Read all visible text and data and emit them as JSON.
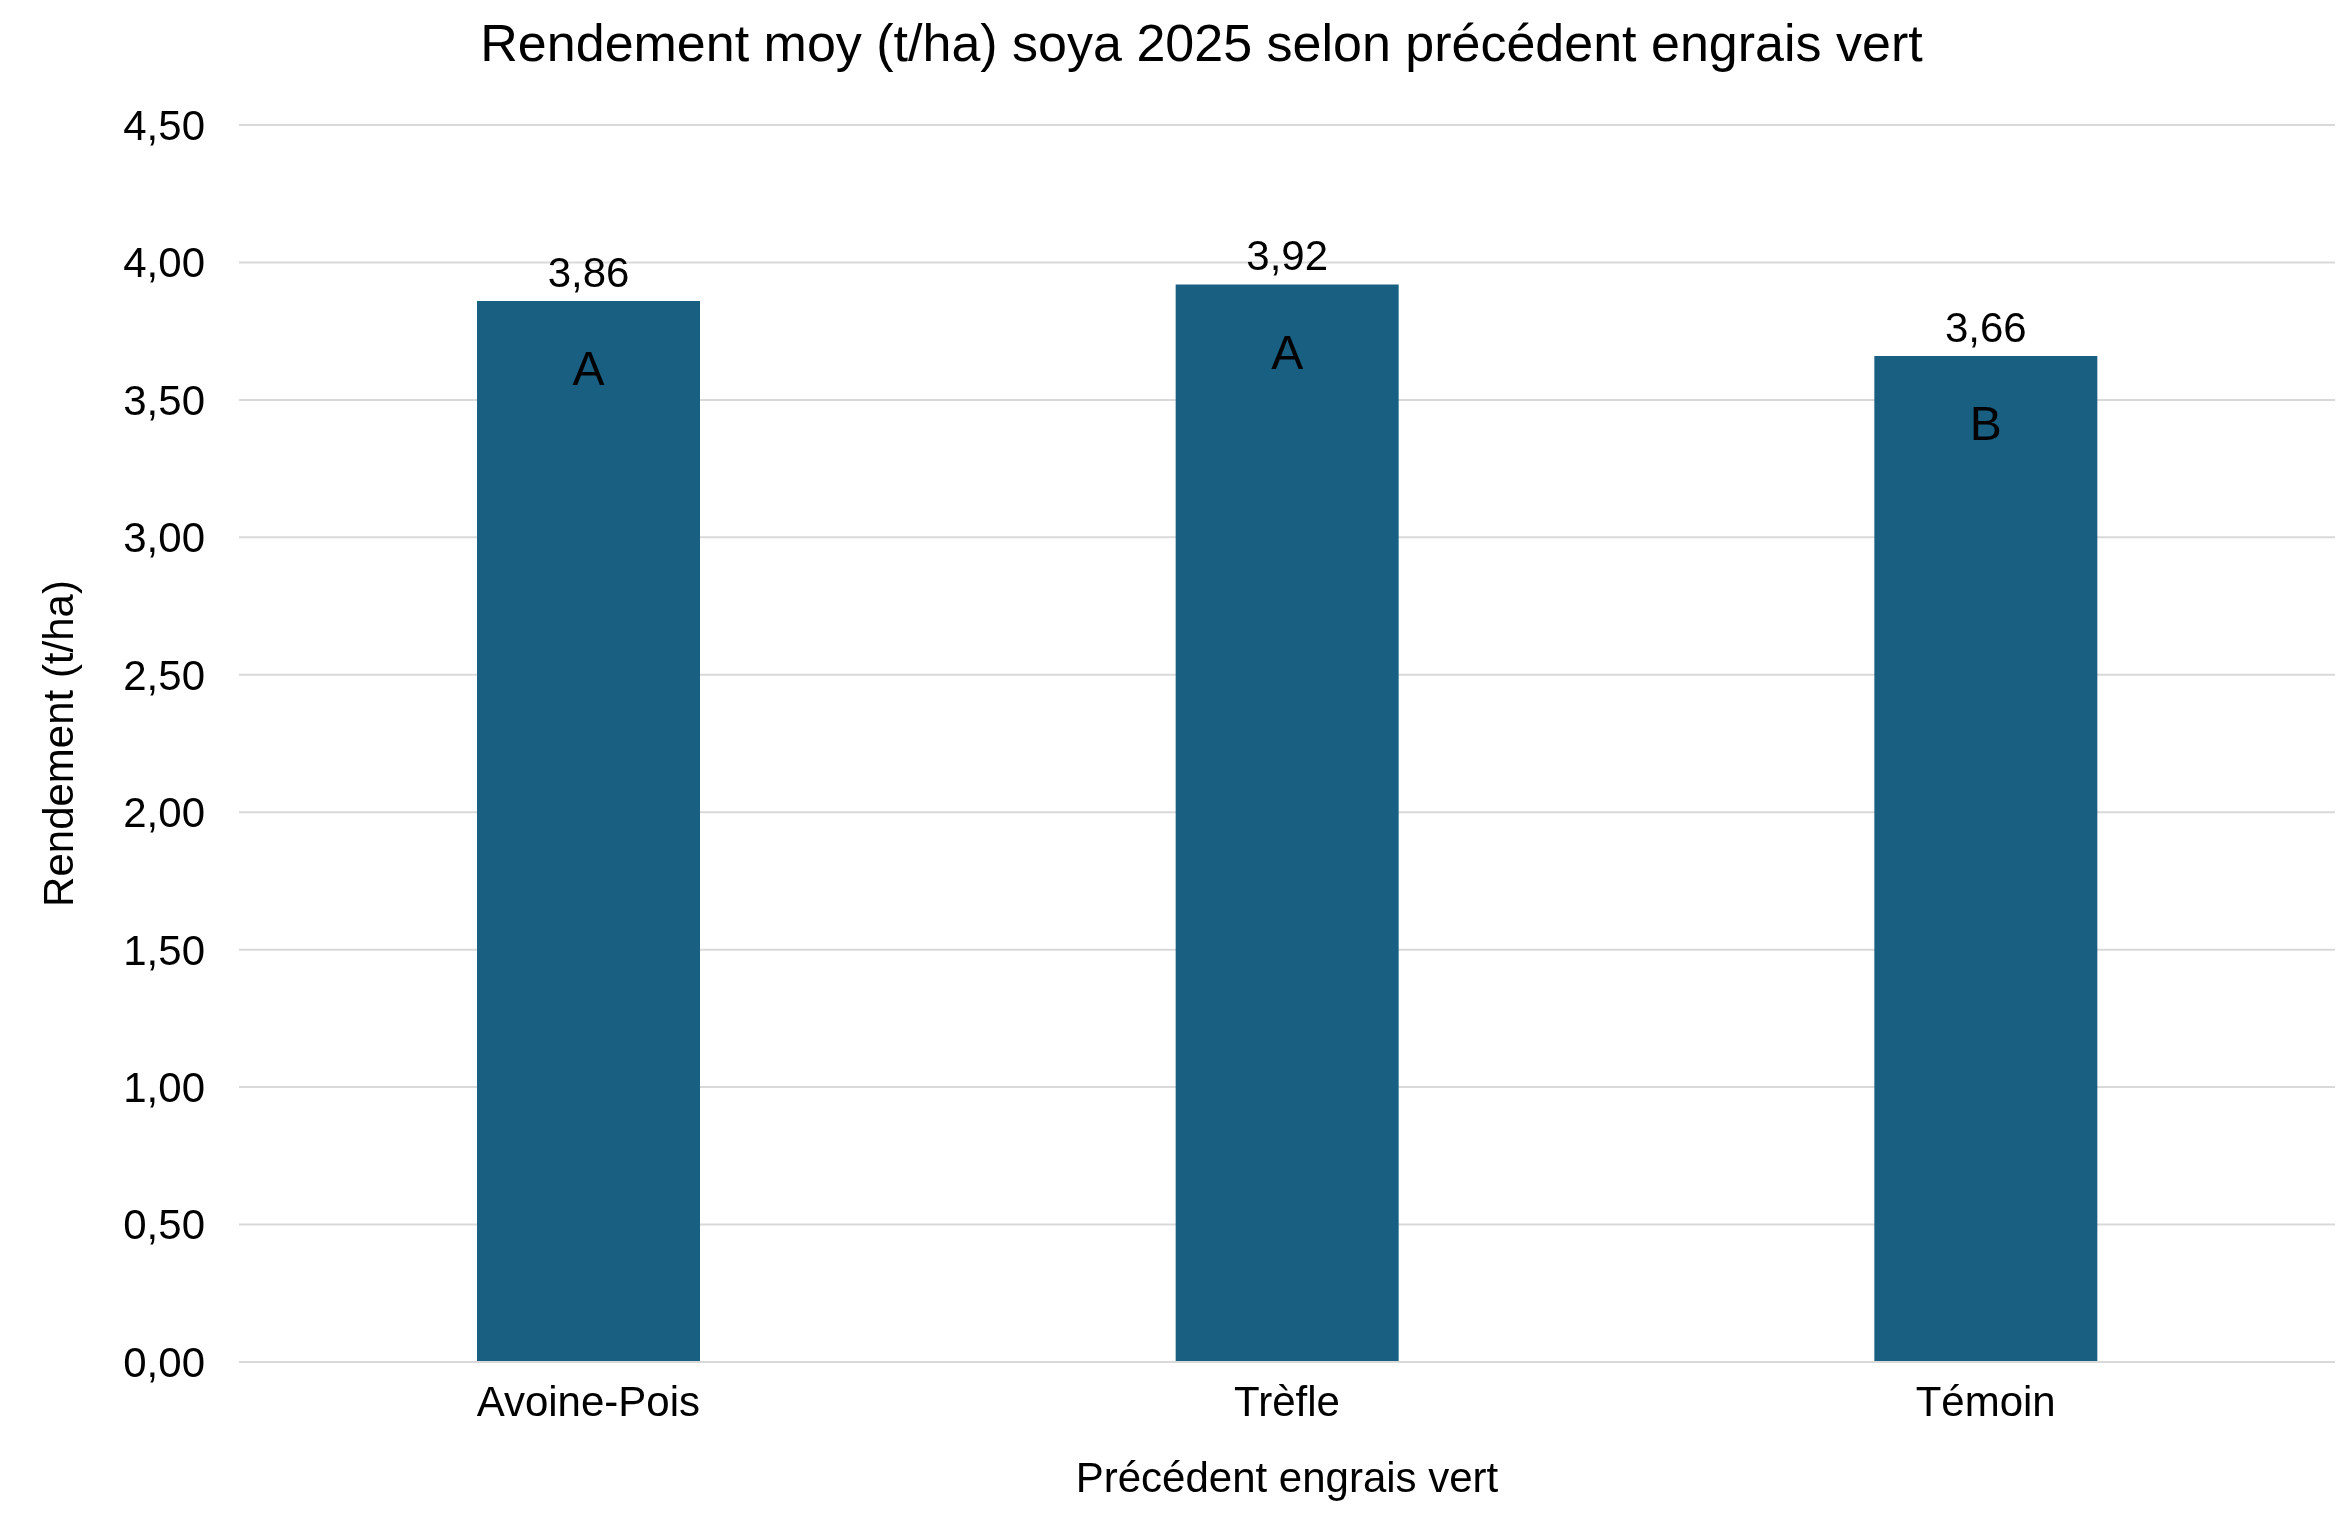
{
  "chart_data": {
    "type": "bar",
    "title": "Rendement moy (t/ha) soya 2025 selon précédent engrais vert",
    "xlabel": "Précédent engrais vert",
    "ylabel": "Rendement (t/ha)",
    "categories": [
      "Avoine-Pois",
      "Trèfle",
      "Témoin"
    ],
    "values": [
      3.86,
      3.92,
      3.66
    ],
    "value_labels": [
      "3,86",
      "3,92",
      "3,66"
    ],
    "color": "#185f82",
    "ylim": [
      0,
      4.5
    ],
    "yticks": [
      {
        "value": 0,
        "label": "0,00"
      },
      {
        "value": 0.5,
        "label": "0,50"
      },
      {
        "value": 1,
        "label": "1,00"
      },
      {
        "value": 1.5,
        "label": "1,50"
      },
      {
        "value": 2,
        "label": "2,00"
      },
      {
        "value": 2.5,
        "label": "2,50"
      },
      {
        "value": 3,
        "label": "3,00"
      },
      {
        "value": 3.5,
        "label": "3,50"
      },
      {
        "value": 4,
        "label": "4,00"
      },
      {
        "value": 4.5,
        "label": "4,50"
      }
    ],
    "annotations": [
      "A",
      "A",
      "B"
    ],
    "grid": "y",
    "legend": false
  }
}
